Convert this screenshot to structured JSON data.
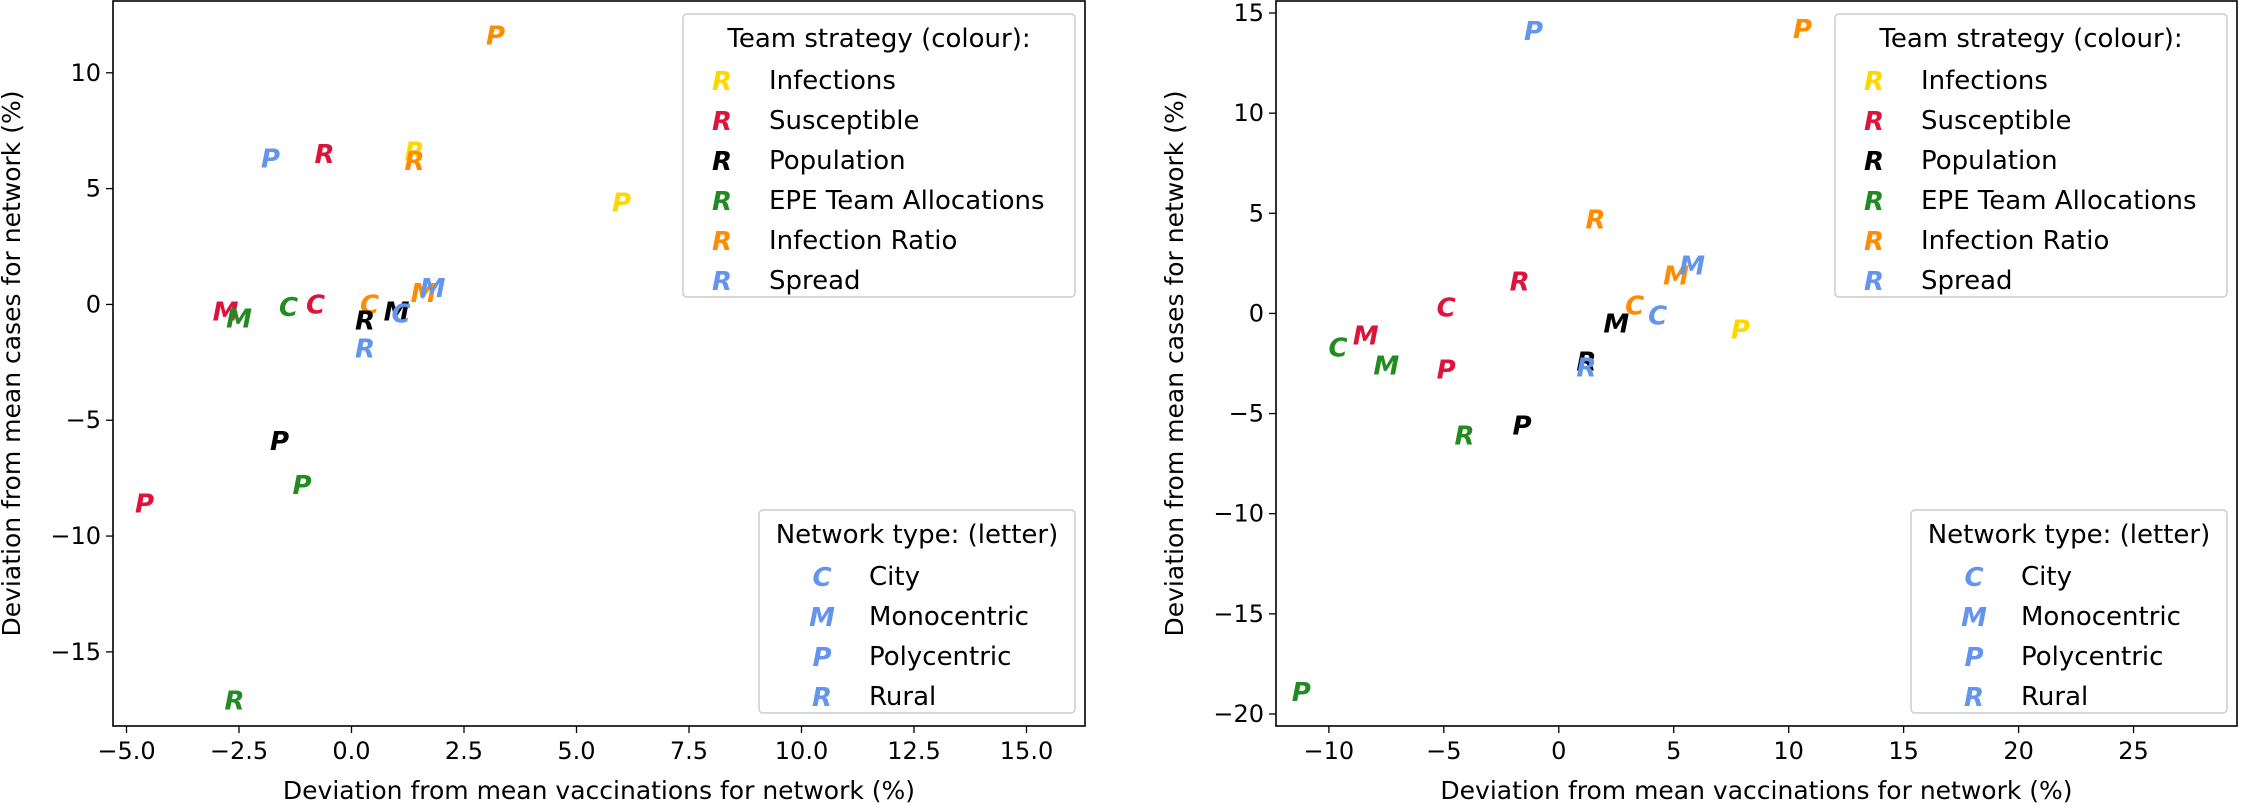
{
  "colors": {
    "Infections": "#ffd700",
    "Susceptible": "#dc143c",
    "Population": "#000000",
    "EPE Team Allocations": "#228b22",
    "Infection Ratio": "#ff8c00",
    "Spread": "#6495ed",
    "network_legend": "#6495ed"
  },
  "chart_data": [
    {
      "type": "scatter",
      "xlabel": "Deviation from mean vaccinations for network (%)",
      "ylabel": "Deviation from mean cases for network (%)",
      "xlim": [
        -5.3,
        16.3
      ],
      "ylim": [
        -18.2,
        13.1
      ],
      "xticks": [
        -5.0,
        -2.5,
        0.0,
        2.5,
        5.0,
        7.5,
        10.0,
        12.5,
        15.0
      ],
      "xtick_labels": [
        "−5.0",
        "−2.5",
        "0.0",
        "2.5",
        "5.0",
        "7.5",
        "10.0",
        "12.5",
        "15.0"
      ],
      "yticks": [
        -15,
        -10,
        -5,
        0,
        5,
        10
      ],
      "ytick_labels": [
        "−15",
        "−10",
        "−5",
        "0",
        "5",
        "10"
      ],
      "grid": false,
      "legend_strategy": {
        "title": "Team strategy (colour):",
        "placement": "top-right",
        "marker": "R",
        "entries": [
          "Infections",
          "Susceptible",
          "Population",
          "EPE Team Allocations",
          "Infection Ratio",
          "Spread"
        ]
      },
      "legend_network": {
        "title": "Network type: (letter)",
        "placement": "bottom-right",
        "entries": [
          {
            "letter": "C",
            "label": "City"
          },
          {
            "letter": "M",
            "label": "Monocentric"
          },
          {
            "letter": "P",
            "label": "Polycentric"
          },
          {
            "letter": "R",
            "label": "Rural"
          }
        ]
      },
      "points": [
        {
          "letter": "P",
          "strategy": "Infection Ratio",
          "x": 3.2,
          "y": 11.6
        },
        {
          "letter": "P",
          "strategy": "Infections",
          "x": 6.0,
          "y": 4.4
        },
        {
          "letter": "P",
          "strategy": "Spread",
          "x": -1.8,
          "y": 6.3
        },
        {
          "letter": "R",
          "strategy": "Susceptible",
          "x": -0.6,
          "y": 6.5
        },
        {
          "letter": "R",
          "strategy": "Infections",
          "x": 1.4,
          "y": 6.6
        },
        {
          "letter": "R",
          "strategy": "Infection Ratio",
          "x": 1.4,
          "y": 6.2
        },
        {
          "letter": "M",
          "strategy": "Susceptible",
          "x": -2.8,
          "y": -0.3
        },
        {
          "letter": "M",
          "strategy": "EPE Team Allocations",
          "x": -2.5,
          "y": -0.6
        },
        {
          "letter": "C",
          "strategy": "EPE Team Allocations",
          "x": -1.4,
          "y": -0.1
        },
        {
          "letter": "C",
          "strategy": "Susceptible",
          "x": -0.8,
          "y": 0.0
        },
        {
          "letter": "C",
          "strategy": "Infection Ratio",
          "x": 0.4,
          "y": 0.0
        },
        {
          "letter": "R",
          "strategy": "Population",
          "x": 0.3,
          "y": -0.7
        },
        {
          "letter": "M",
          "strategy": "Population",
          "x": 1.0,
          "y": -0.3
        },
        {
          "letter": "C",
          "strategy": "Spread",
          "x": 1.1,
          "y": -0.4
        },
        {
          "letter": "M",
          "strategy": "Infection Ratio",
          "x": 1.6,
          "y": 0.5
        },
        {
          "letter": "M",
          "strategy": "Spread",
          "x": 1.8,
          "y": 0.7
        },
        {
          "letter": "R",
          "strategy": "Spread",
          "x": 0.3,
          "y": -1.9
        },
        {
          "letter": "P",
          "strategy": "Population",
          "x": -1.6,
          "y": -5.9
        },
        {
          "letter": "P",
          "strategy": "EPE Team Allocations",
          "x": -1.1,
          "y": -7.8
        },
        {
          "letter": "P",
          "strategy": "Susceptible",
          "x": -4.6,
          "y": -8.6
        },
        {
          "letter": "R",
          "strategy": "EPE Team Allocations",
          "x": -2.6,
          "y": -17.1
        }
      ]
    },
    {
      "type": "scatter",
      "xlabel": "Deviation from mean vaccinations for network (%)",
      "ylabel": "Deviation from mean cases for network (%)",
      "xlim": [
        -12.3,
        29.5
      ],
      "ylim": [
        -20.6,
        15.6
      ],
      "xticks": [
        -10,
        -5,
        0,
        5,
        10,
        15,
        20,
        25
      ],
      "xtick_labels": [
        "−10",
        "−5",
        "0",
        "5",
        "10",
        "15",
        "20",
        "25"
      ],
      "yticks": [
        -20,
        -15,
        -10,
        -5,
        0,
        5,
        10,
        15
      ],
      "ytick_labels": [
        "−20",
        "−15",
        "−10",
        "−5",
        "0",
        "5",
        "10",
        "15"
      ],
      "grid": false,
      "legend_strategy": {
        "title": "Team strategy (colour):",
        "placement": "top-right",
        "marker": "R",
        "entries": [
          "Infections",
          "Susceptible",
          "Population",
          "EPE Team Allocations",
          "Infection Ratio",
          "Spread"
        ]
      },
      "legend_network": {
        "title": "Network type: (letter)",
        "placement": "bottom-right",
        "entries": [
          {
            "letter": "C",
            "label": "City"
          },
          {
            "letter": "M",
            "label": "Monocentric"
          },
          {
            "letter": "P",
            "label": "Polycentric"
          },
          {
            "letter": "R",
            "label": "Rural"
          }
        ]
      },
      "points": [
        {
          "letter": "P",
          "strategy": "Spread",
          "x": -1.1,
          "y": 14.1
        },
        {
          "letter": "P",
          "strategy": "Infection Ratio",
          "x": 10.6,
          "y": 14.2
        },
        {
          "letter": "R",
          "strategy": "Infection Ratio",
          "x": 1.6,
          "y": 4.7
        },
        {
          "letter": "R",
          "strategy": "Susceptible",
          "x": -1.7,
          "y": 1.6
        },
        {
          "letter": "C",
          "strategy": "Susceptible",
          "x": -4.9,
          "y": 0.3
        },
        {
          "letter": "M",
          "strategy": "Infection Ratio",
          "x": 5.1,
          "y": 1.9
        },
        {
          "letter": "M",
          "strategy": "Spread",
          "x": 5.8,
          "y": 2.4
        },
        {
          "letter": "C",
          "strategy": "Infection Ratio",
          "x": 3.3,
          "y": 0.4
        },
        {
          "letter": "C",
          "strategy": "Spread",
          "x": 4.3,
          "y": -0.1
        },
        {
          "letter": "M",
          "strategy": "Population",
          "x": 2.5,
          "y": -0.5
        },
        {
          "letter": "P",
          "strategy": "Infections",
          "x": 7.9,
          "y": -0.8
        },
        {
          "letter": "M",
          "strategy": "Susceptible",
          "x": -8.4,
          "y": -1.1
        },
        {
          "letter": "C",
          "strategy": "EPE Team Allocations",
          "x": -9.6,
          "y": -1.7
        },
        {
          "letter": "M",
          "strategy": "EPE Team Allocations",
          "x": -7.5,
          "y": -2.6
        },
        {
          "letter": "P",
          "strategy": "Susceptible",
          "x": -4.9,
          "y": -2.8
        },
        {
          "letter": "R",
          "strategy": "Population",
          "x": 1.2,
          "y": -2.4
        },
        {
          "letter": "R",
          "strategy": "Spread",
          "x": 1.2,
          "y": -2.7
        },
        {
          "letter": "P",
          "strategy": "Population",
          "x": -1.6,
          "y": -5.6
        },
        {
          "letter": "R",
          "strategy": "EPE Team Allocations",
          "x": -4.1,
          "y": -6.1
        },
        {
          "letter": "P",
          "strategy": "EPE Team Allocations",
          "x": -11.2,
          "y": -18.9
        }
      ]
    }
  ]
}
